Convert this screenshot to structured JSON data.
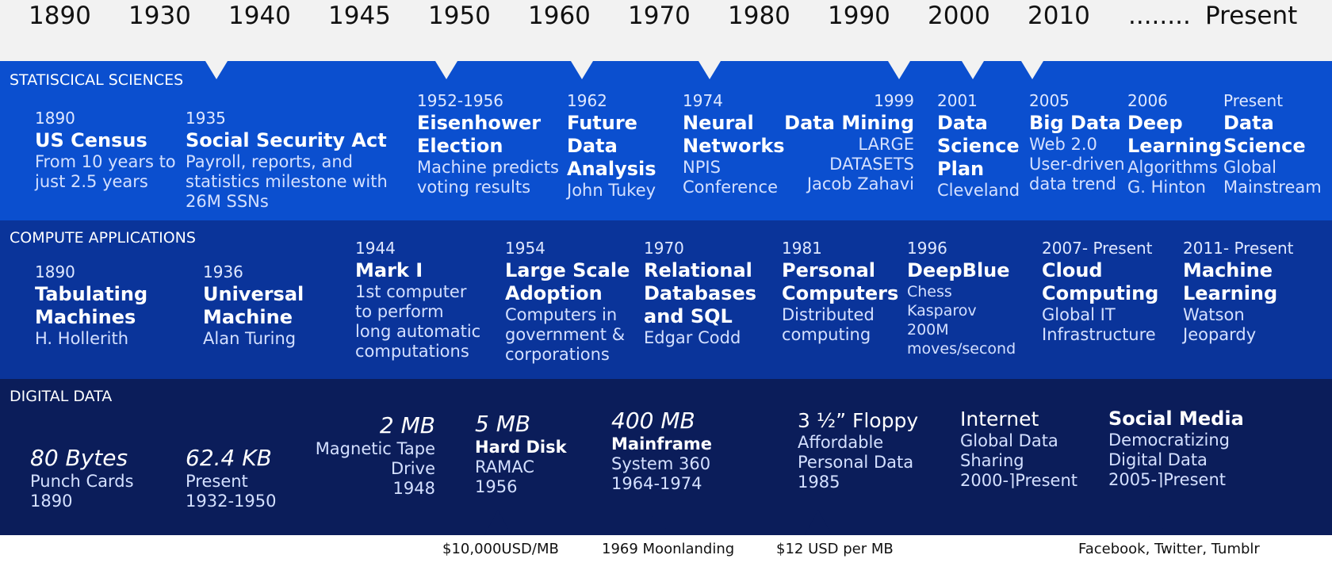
{
  "timeline": {
    "years": [
      "1890",
      "1930",
      "1940",
      "1945",
      "1950",
      "1960",
      "1970",
      "1980",
      "1990",
      "2000",
      "2010",
      "........",
      "Present"
    ]
  },
  "stats": {
    "label": "STATISCICAL SCIENCES",
    "items": [
      {
        "year": "1890",
        "title": [
          "US Census"
        ],
        "desc": [
          "From 10 years to",
          "just 2.5 years"
        ]
      },
      {
        "year": "1935",
        "title": [
          "Social Security Act"
        ],
        "desc": [
          "Payroll, reports, and",
          "statistics milestone with",
          "26M SSNs"
        ]
      },
      {
        "year": "1952-1956",
        "title": [
          "Eisenhower",
          "Election"
        ],
        "desc": [
          "Machine predicts",
          "voting results"
        ]
      },
      {
        "year": "1962",
        "title": [
          "Future",
          "Data",
          "Analysis"
        ],
        "desc": [
          "John Tukey"
        ]
      },
      {
        "year": "1974",
        "title": [
          "Neural",
          "Networks"
        ],
        "desc": [
          "NPIS",
          "Conference"
        ]
      },
      {
        "year": "1999",
        "title": [
          "Data Mining"
        ],
        "desc": [
          "LARGE",
          "DATASETS",
          "Jacob Zahavi"
        ]
      },
      {
        "year": "2001",
        "title": [
          "Data",
          "Science",
          "Plan"
        ],
        "desc": [
          "Cleveland"
        ]
      },
      {
        "year": "2005",
        "title": [
          "Big Data"
        ],
        "desc": [
          "Web 2.0",
          "User-driven",
          "data trend"
        ]
      },
      {
        "year": "2006",
        "title": [
          "Deep",
          "Learning"
        ],
        "desc": [
          "Algorithms",
          "G. Hinton"
        ]
      },
      {
        "year": "Present",
        "title": [
          "Data",
          "Science"
        ],
        "desc": [
          "Global",
          "Mainstream"
        ]
      }
    ]
  },
  "compute": {
    "label": "COMPUTE APPLICATIONS",
    "items": [
      {
        "year": "1890",
        "title": [
          "Tabulating",
          "Machines"
        ],
        "desc": [
          "H. Hollerith"
        ]
      },
      {
        "year": "1936",
        "title": [
          "Universal",
          "Machine"
        ],
        "desc": [
          "Alan Turing"
        ]
      },
      {
        "year": "1944",
        "title": [
          "Mark I"
        ],
        "desc": [
          "1st computer",
          "to perform",
          "long automatic",
          "computations"
        ]
      },
      {
        "year": "1954",
        "title": [
          "Large Scale",
          "Adoption"
        ],
        "desc": [
          "Computers in",
          "government &",
          "corporations"
        ]
      },
      {
        "year": "1970",
        "title": [
          "Relational",
          "Databases",
          "and SQL"
        ],
        "desc": [
          "Edgar Codd"
        ]
      },
      {
        "year": "1981",
        "title": [
          "Personal",
          "Computers"
        ],
        "desc": [
          "Distributed",
          "computing"
        ]
      },
      {
        "year": "1996",
        "title": [
          "DeepBlue"
        ],
        "desc": [
          "Chess",
          "Kasparov",
          "200M",
          "moves/second"
        ]
      },
      {
        "year": "2007- Present",
        "title": [
          "Cloud",
          "Computing"
        ],
        "desc": [
          "Global IT",
          "Infrastructure"
        ]
      },
      {
        "year": "2011- Present",
        "title": [
          "Machine",
          "Learning"
        ],
        "desc": [
          "Watson",
          "Jeopardy"
        ]
      }
    ]
  },
  "digital": {
    "label": "DIGITAL DATA",
    "items": [
      {
        "value": "80 Bytes",
        "lines": [
          "Punch Cards",
          "1890"
        ]
      },
      {
        "value": "62.4 KB",
        "lines": [
          "Present",
          "1932-1950"
        ]
      },
      {
        "value": "2 MB",
        "lines": [
          "Magnetic Tape",
          "Drive",
          "1948"
        ]
      },
      {
        "value": "5 MB",
        "bold": "Hard Disk",
        "lines": [
          "RAMAC",
          "1956"
        ]
      },
      {
        "value": "400 MB",
        "bold": "Mainframe",
        "lines": [
          "System 360",
          "1964-1974"
        ]
      },
      {
        "value": "3 ½” Floppy",
        "lines": [
          "Affordable",
          "Personal Data",
          "1985"
        ]
      },
      {
        "value": "Internet",
        "lines": [
          "Global Data",
          "Sharing",
          "2000-⌉Present"
        ]
      },
      {
        "value": "Social Media",
        "lines": [
          "Democratizing",
          "Digital Data",
          "2005-⌉Present"
        ]
      }
    ]
  },
  "notes": [
    "$10,000USD/MB",
    "1969 Moonlanding",
    "$12 USD per MB",
    "Facebook, Twitter, Tumblr"
  ]
}
